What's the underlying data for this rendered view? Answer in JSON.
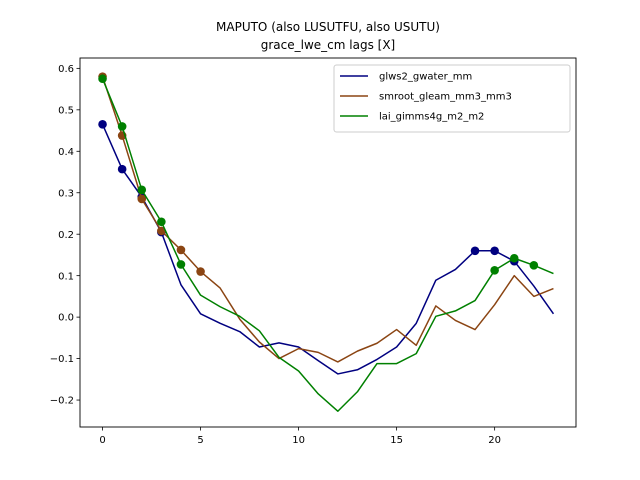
{
  "chart_data": {
    "type": "line",
    "title": "MAPUTO (also LUSUTFU, also USUTU)",
    "subtitle": "grace_lwe_cm lags [X]",
    "xlim": [
      -1.15,
      24.15
    ],
    "ylim": [
      -0.265,
      0.625
    ],
    "xticks": [
      0,
      5,
      10,
      15,
      20
    ],
    "yticks": [
      -0.2,
      -0.1,
      0.0,
      0.1,
      0.2,
      0.3,
      0.4,
      0.5,
      0.6
    ],
    "ytick_labels": [
      "−0.2",
      "−0.1",
      "0.0",
      "0.1",
      "0.2",
      "0.3",
      "0.4",
      "0.5",
      "0.6"
    ],
    "x": [
      0,
      1,
      2,
      3,
      4,
      5,
      6,
      7,
      8,
      9,
      10,
      11,
      12,
      13,
      14,
      15,
      16,
      17,
      18,
      19,
      20,
      21,
      22,
      23
    ],
    "legend_position": "upper-right",
    "series": [
      {
        "name": "glws2_gwater_mm",
        "color": "#000080",
        "values": [
          0.465,
          0.357,
          0.29,
          0.205,
          0.078,
          0.008,
          -0.015,
          -0.035,
          -0.072,
          -0.062,
          -0.072,
          -0.105,
          -0.137,
          -0.127,
          -0.102,
          -0.072,
          -0.015,
          0.089,
          0.115,
          0.16,
          0.16,
          0.135,
          0.075,
          0.008
        ],
        "markers": [
          0,
          1,
          2,
          3,
          19,
          20,
          21
        ]
      },
      {
        "name": "smroot_gleam_mm3_mm3",
        "color": "#8B4513",
        "values": [
          0.58,
          0.438,
          0.285,
          0.208,
          0.162,
          0.11,
          0.07,
          -0.005,
          -0.06,
          -0.1,
          -0.076,
          -0.085,
          -0.108,
          -0.082,
          -0.063,
          -0.03,
          -0.068,
          0.027,
          -0.008,
          -0.03,
          0.03,
          0.1,
          0.05,
          0.069
        ],
        "markers": [
          0,
          1,
          2,
          3,
          4,
          5
        ]
      },
      {
        "name": "lai_gimms4g_m2_m2",
        "color": "#008000",
        "values": [
          0.575,
          0.46,
          0.307,
          0.23,
          0.127,
          0.053,
          0.025,
          0.002,
          -0.033,
          -0.097,
          -0.13,
          -0.185,
          -0.227,
          -0.18,
          -0.112,
          -0.112,
          -0.088,
          0.002,
          0.015,
          0.04,
          0.113,
          0.142,
          0.125,
          0.105
        ],
        "markers": [
          0,
          1,
          2,
          3,
          4,
          20,
          21,
          22
        ]
      }
    ]
  }
}
